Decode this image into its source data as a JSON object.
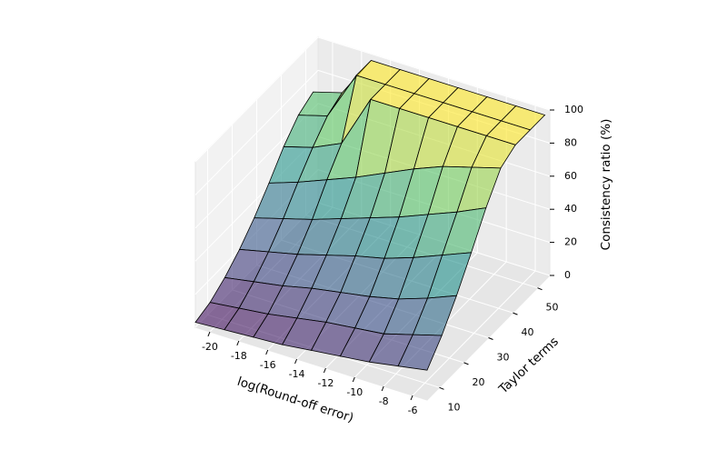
{
  "chart_data": {
    "type": "surface3d",
    "x_label": "log(Round-off error)",
    "y_label": "Taylor terms",
    "z_label": "Consistency ratio (%)",
    "colormap": "viridis",
    "x": [
      -21,
      -19,
      -17,
      -15,
      -13,
      -11,
      -9,
      -7,
      -5
    ],
    "y": [
      5,
      11,
      17,
      23,
      29,
      35,
      41,
      47,
      53
    ],
    "z": [
      [
        3,
        4,
        5,
        6,
        8,
        10,
        12,
        15,
        18
      ],
      [
        6,
        8,
        10,
        13,
        16,
        18,
        20,
        25,
        30
      ],
      [
        12,
        15,
        18,
        22,
        25,
        28,
        32,
        38,
        45
      ],
      [
        20,
        24,
        28,
        33,
        38,
        42,
        48,
        55,
        62
      ],
      [
        30,
        35,
        40,
        46,
        52,
        58,
        65,
        72,
        80
      ],
      [
        42,
        48,
        55,
        62,
        70,
        78,
        85,
        90,
        95
      ],
      [
        55,
        60,
        68,
        100,
        100,
        100,
        100,
        100,
        100
      ],
      [
        65,
        70,
        100,
        100,
        100,
        100,
        100,
        100,
        100
      ],
      [
        70,
        75,
        100,
        100,
        100,
        100,
        100,
        100,
        100
      ]
    ],
    "xlim": [
      -21,
      -5
    ],
    "ylim": [
      5,
      55
    ],
    "zlim": [
      0,
      100
    ],
    "xticks": [
      -20,
      -18,
      -16,
      -14,
      -12,
      -10,
      -8,
      -6
    ],
    "yticks": [
      10,
      20,
      30,
      40,
      50
    ],
    "zticks": [
      0,
      20,
      40,
      60,
      80,
      100
    ],
    "grid": true
  }
}
